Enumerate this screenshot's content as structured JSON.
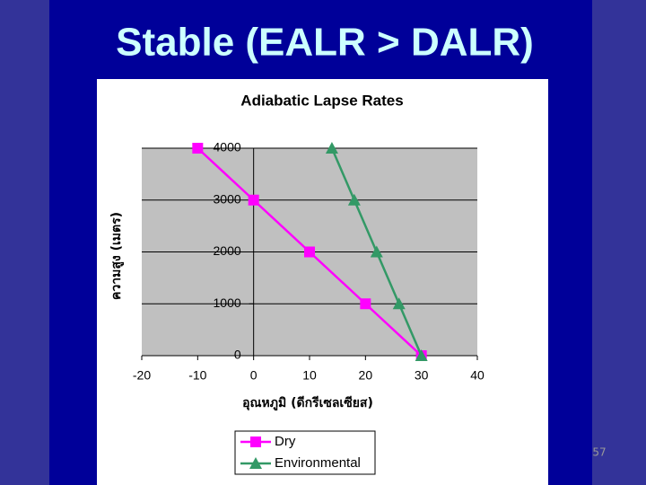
{
  "slide": {
    "title": "Stable (EALR > DALR)",
    "page_number": "57"
  },
  "chart_data": {
    "type": "line",
    "title": "Adiabatic Lapse Rates",
    "x_label": "อุณหภูมิ (ดีกรีเซลเซียส)",
    "y_label": "ความสูง (เมตร)",
    "series": [
      {
        "name": "Dry",
        "color": "#ff00ff",
        "marker": "square",
        "x": [
          -10,
          0,
          10,
          20,
          30
        ],
        "values": [
          4000,
          3000,
          2000,
          1000,
          0
        ]
      },
      {
        "name": "Environmental",
        "color": "#339966",
        "marker": "triangle",
        "x": [
          14,
          18,
          22,
          26,
          30
        ],
        "values": [
          4000,
          3000,
          2000,
          1000,
          0
        ]
      }
    ],
    "xlim": [
      -20,
      40
    ],
    "xticks": [
      -20,
      -10,
      0,
      10,
      20,
      30,
      40
    ],
    "ylim": [
      0,
      4000
    ],
    "yticks": [
      0,
      1000,
      2000,
      3000,
      4000
    ],
    "grid": true,
    "legend": "bottom"
  }
}
